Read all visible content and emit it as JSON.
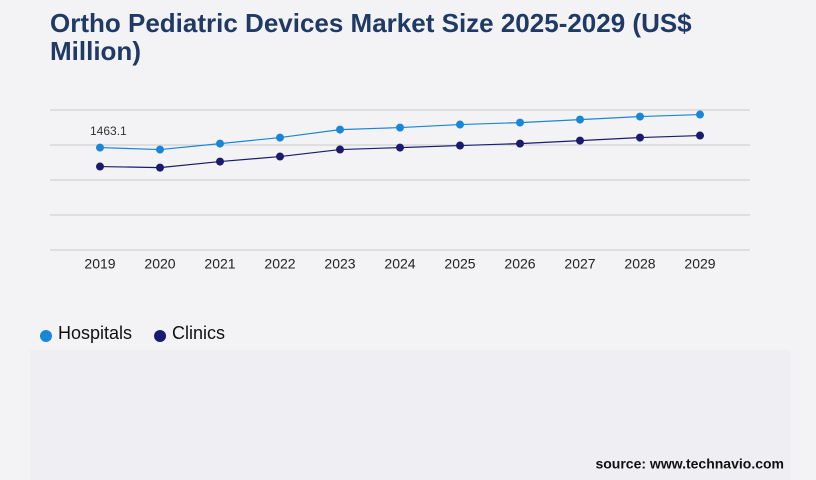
{
  "chart_data": {
    "type": "line",
    "title_line1": "Ortho Pediatric Devices Market Size 2025-2029 (US$",
    "title_line2": "Million)",
    "source": "source: www.technavio.com",
    "categories": [
      "2019",
      "2020",
      "2021",
      "2022",
      "2023",
      "2024",
      "2025",
      "2026",
      "2027",
      "2028",
      "2029"
    ],
    "series": [
      {
        "name": "Hospitals",
        "color": "#1a86d6",
        "values": [
          1463.1,
          1434.5,
          1520,
          1606,
          1720,
          1749,
          1792,
          1820,
          1863,
          1906,
          1935
        ],
        "value_labels": [
          "1463.1",
          null,
          null,
          null,
          null,
          null,
          null,
          null,
          null,
          null,
          null
        ]
      },
      {
        "name": "Clinics",
        "color": "#1b1a6e",
        "values": [
          1192,
          1177,
          1263,
          1335,
          1435,
          1463,
          1492,
          1520,
          1563,
          1606,
          1635
        ]
      }
    ],
    "ylim": [
      0,
      2000
    ],
    "yticks": [
      0,
      500,
      1000,
      1500,
      2000
    ],
    "grid": true,
    "ytick_labels": false,
    "legend": "bottom-left"
  }
}
